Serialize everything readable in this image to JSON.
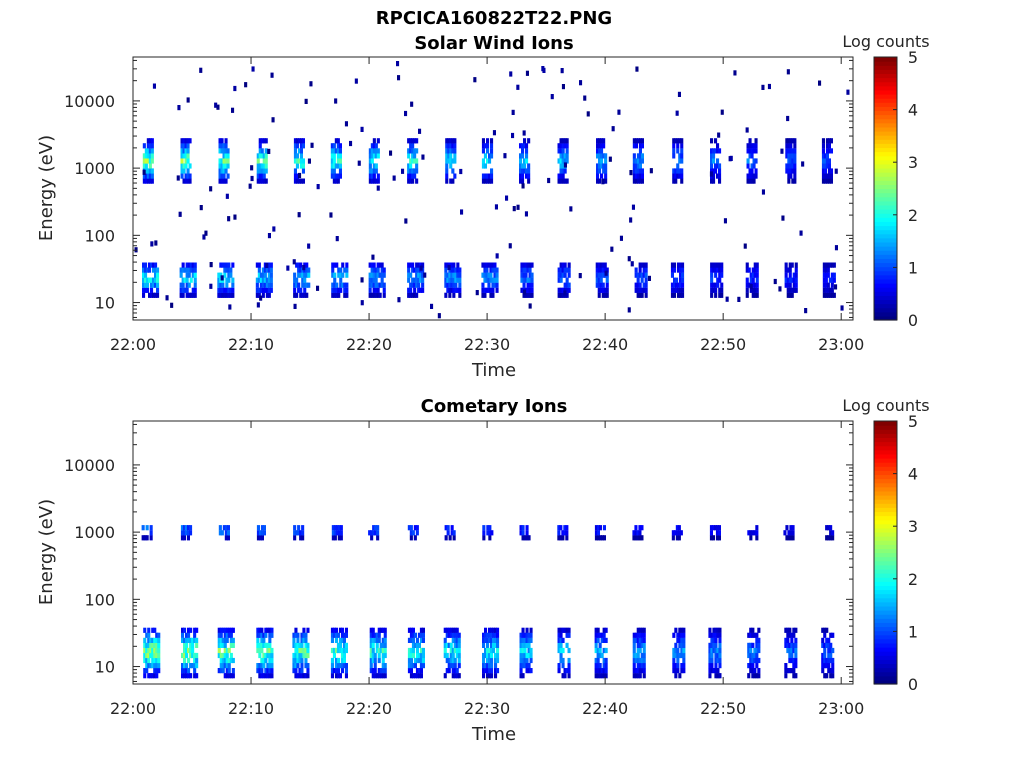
{
  "figure_title": "RPCICA160822T22.PNG",
  "chart_data": [
    {
      "type": "heatmap",
      "title": "Solar Wind Ions",
      "xlabel": "Time",
      "ylabel": "Energy (eV)",
      "xlim": [
        "22:00",
        "23:01"
      ],
      "ylim": [
        5.5,
        45000
      ],
      "yscale": "log",
      "xticks": [
        "22:00",
        "22:10",
        "22:20",
        "22:30",
        "22:40",
        "22:50",
        "23:00"
      ],
      "yticks": [
        10,
        100,
        1000,
        10000
      ],
      "ytick_labels": [
        "10",
        "100",
        "1000",
        "10000"
      ],
      "colorbar": {
        "label": "Log counts",
        "range": [
          0,
          5
        ],
        "ticks": [
          "0",
          "1",
          "2",
          "3",
          "4",
          "5"
        ],
        "colormap": "jet"
      },
      "sweep_period_min": 3.2,
      "features": [
        {
          "band": "high-energy solar wind",
          "energy_range_eV": [
            700,
            2800
          ],
          "peak_log_counts": 3.0
        },
        {
          "band": "low-energy",
          "energy_range_eV": [
            14,
            45
          ],
          "peak_log_counts": 2.3
        },
        {
          "band": "sparse background",
          "energy_range_eV": [
            6,
            40000
          ],
          "peak_log_counts": 0.2
        }
      ]
    },
    {
      "type": "heatmap",
      "title": "Cometary Ions",
      "xlabel": "Time",
      "ylabel": "Energy (eV)",
      "xlim": [
        "22:00",
        "23:01"
      ],
      "ylim": [
        5.5,
        45000
      ],
      "yscale": "log",
      "xticks": [
        "22:00",
        "22:10",
        "22:20",
        "22:30",
        "22:40",
        "22:50",
        "23:00"
      ],
      "yticks": [
        10,
        100,
        1000,
        10000
      ],
      "ytick_labels": [
        "10",
        "100",
        "1000",
        "10000"
      ],
      "colorbar": {
        "label": "Log counts",
        "range": [
          0,
          5
        ],
        "ticks": [
          "0",
          "1",
          "2",
          "3",
          "4",
          "5"
        ],
        "colormap": "jet"
      },
      "sweep_period_min": 3.2,
      "features": [
        {
          "band": "high-energy",
          "energy_range_eV": [
            900,
            1500
          ],
          "peak_log_counts": 1.8
        },
        {
          "band": "low-energy cometary",
          "energy_range_eV": [
            8,
            40
          ],
          "peak_log_counts": 3.2
        }
      ]
    }
  ]
}
